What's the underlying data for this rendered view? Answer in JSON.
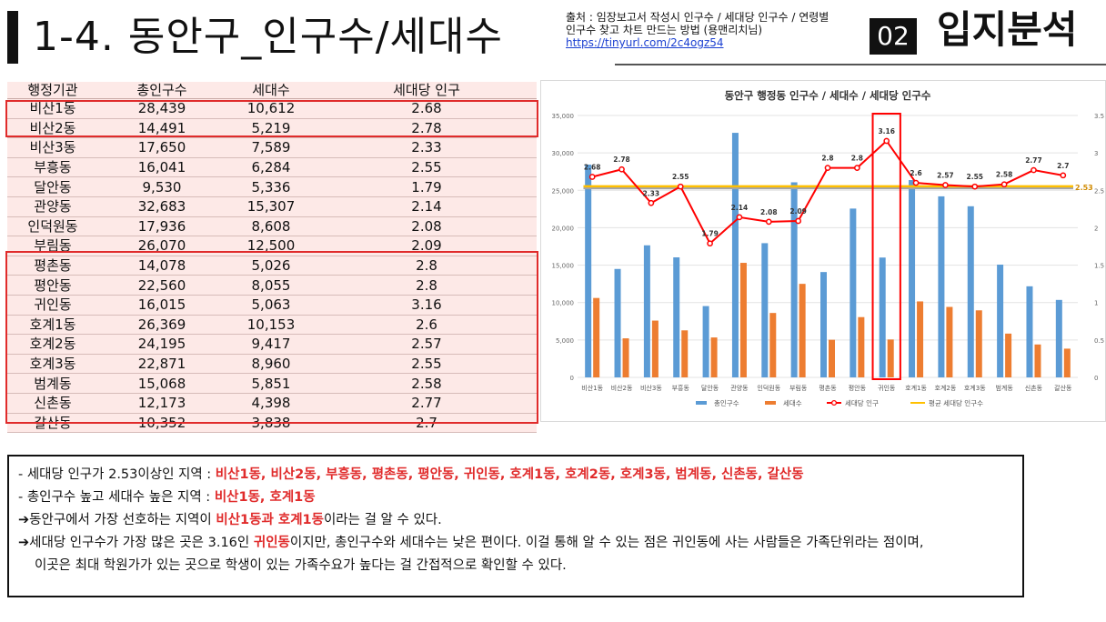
{
  "header": {
    "title": "1-4. 동안구_인구수/세대수",
    "source_line1": "출처 : 임장보고서 작성시 인구수 / 세대당 인구수 / 연령별",
    "source_line2": "인구수 찾고 차트 만드는 방법 (용맨리치님)",
    "source_link": "https://tinyurl.com/2c4ogz54",
    "badge": "02",
    "section": "입지분석"
  },
  "table": {
    "columns": [
      "행정기관",
      "총인구수",
      "세대수",
      "세대당 인구"
    ],
    "rows": [
      [
        "비산1동",
        "28,439",
        "10,612",
        "2.68"
      ],
      [
        "비산2동",
        "14,491",
        "5,219",
        "2.78"
      ],
      [
        "비산3동",
        "17,650",
        "7,589",
        "2.33"
      ],
      [
        "부흥동",
        "16,041",
        "6,284",
        "2.55"
      ],
      [
        "달안동",
        "9,530",
        "5,336",
        "1.79"
      ],
      [
        "관양동",
        "32,683",
        "15,307",
        "2.14"
      ],
      [
        "인덕원동",
        "17,936",
        "8,608",
        "2.08"
      ],
      [
        "부림동",
        "26,070",
        "12,500",
        "2.09"
      ],
      [
        "평촌동",
        "14,078",
        "5,026",
        "2.8"
      ],
      [
        "평안동",
        "22,560",
        "8,055",
        "2.8"
      ],
      [
        "귀인동",
        "16,015",
        "5,063",
        "3.16"
      ],
      [
        "호계1동",
        "26,369",
        "10,153",
        "2.6"
      ],
      [
        "호계2동",
        "24,195",
        "9,417",
        "2.57"
      ],
      [
        "호계3동",
        "22,871",
        "8,960",
        "2.55"
      ],
      [
        "범계동",
        "15,068",
        "5,851",
        "2.58"
      ],
      [
        "신촌동",
        "12,173",
        "4,398",
        "2.77"
      ],
      [
        "갈산동",
        "10,352",
        "3,838",
        "2.7"
      ]
    ]
  },
  "chart_data": {
    "type": "bar",
    "title": "동안구 행정동 인구수 / 세대수 / 세대당 인구수",
    "categories": [
      "비산1동",
      "비산2동",
      "비산3동",
      "부흥동",
      "달안동",
      "관양동",
      "인덕원동",
      "부림동",
      "평촌동",
      "평안동",
      "귀인동",
      "호계1동",
      "호계2동",
      "호계3동",
      "범계동",
      "신촌동",
      "갈산동"
    ],
    "series": [
      {
        "name": "총인구수",
        "type": "bar",
        "axis": "left",
        "color": "#5b9bd5",
        "values": [
          28439,
          14491,
          17650,
          16041,
          9530,
          32683,
          17936,
          26070,
          14078,
          22560,
          16015,
          26369,
          24195,
          22871,
          15068,
          12173,
          10352
        ]
      },
      {
        "name": "세대수",
        "type": "bar",
        "axis": "left",
        "color": "#ed7d31",
        "values": [
          10612,
          5219,
          7589,
          6284,
          5336,
          15307,
          8608,
          12500,
          5026,
          8055,
          5063,
          10153,
          9417,
          8960,
          5851,
          4398,
          3838
        ]
      },
      {
        "name": "세대당 인구",
        "type": "line",
        "axis": "right",
        "color": "#ff0000",
        "values": [
          2.68,
          2.78,
          2.33,
          2.55,
          1.79,
          2.14,
          2.08,
          2.09,
          2.8,
          2.8,
          3.16,
          2.6,
          2.57,
          2.55,
          2.58,
          2.77,
          2.7
        ]
      },
      {
        "name": "평균 세대당 인구수",
        "type": "line",
        "axis": "right",
        "color": "#ffc000",
        "values": [
          2.53,
          2.53,
          2.53,
          2.53,
          2.53,
          2.53,
          2.53,
          2.53,
          2.53,
          2.53,
          2.53,
          2.53,
          2.53,
          2.53,
          2.53,
          2.53,
          2.53
        ]
      }
    ],
    "average_label": "2.53",
    "ylim_left": [
      0,
      35000
    ],
    "ylim_right": [
      0,
      3.5
    ],
    "yticks_left": [
      "0",
      "5,000",
      "10,000",
      "15,000",
      "20,000",
      "25,000",
      "30,000",
      "35,000"
    ],
    "yticks_right": [
      "0",
      "0.5",
      "1",
      "1.5",
      "2",
      "2.5",
      "3",
      "3.5"
    ],
    "legend_position": "bottom",
    "grid": true
  },
  "notes": {
    "line1_prefix": "- 세대당 인구가 2.53이상인 지역 : ",
    "line1_hl": "비산1동, 비산2동, 부흥동, 평촌동, 평안동, 귀인동, 호계1동, 호계2동, 호계3동, 범계동, 신촌동, 갈산동",
    "line2_prefix": "- 총인구수 높고 세대수 높은 지역 : ",
    "line2_hl": "비산1동, 호계1동",
    "line3_a": "➔동안구에서 가장 선호하는 지역이 ",
    "line3_hl": "비산1동과 호계1동",
    "line3_b": "이라는 걸 알 수 있다.",
    "line4_a": "➔세대당 인구수가 가장 많은 곳은 3.16인 ",
    "line4_hl": "귀인동",
    "line4_b": "이지만, 총인구수와 세대수는 낮은 편이다. 이걸 통해 알 수 있는 점은 귀인동에 사는 사람들은 가족단위라는 점이며,",
    "line5": "이곳은 최대 학원가가 있는 곳으로 학생이 있는 가족수요가 높다는 걸 간접적으로 확인할 수 있다."
  }
}
